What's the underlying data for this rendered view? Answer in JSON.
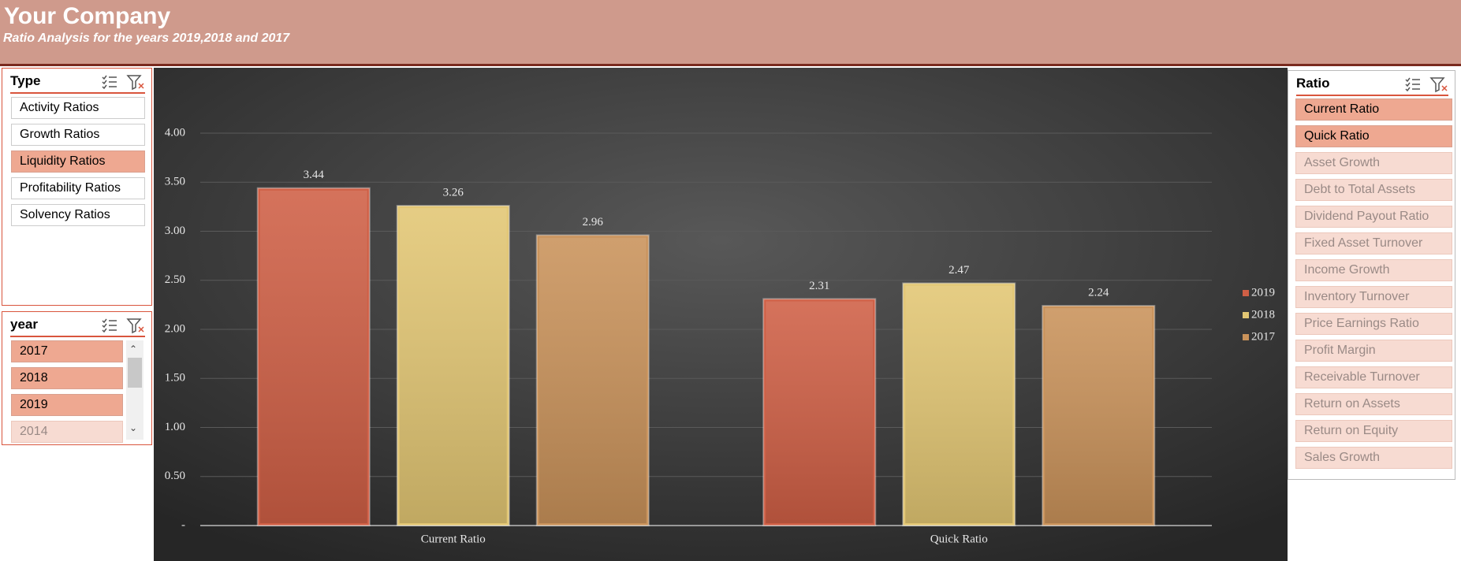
{
  "header": {
    "title": "Your Company",
    "subtitle": "Ratio Analysis for the years 2019,2018 and 2017"
  },
  "type_slicer": {
    "title": "Type",
    "items": [
      {
        "label": "Activity Ratios",
        "selected": false
      },
      {
        "label": "Growth Ratios",
        "selected": false
      },
      {
        "label": "Liquidity Ratios",
        "selected": true
      },
      {
        "label": "Profitability Ratios",
        "selected": false
      },
      {
        "label": "Solvency Ratios",
        "selected": false
      }
    ]
  },
  "year_slicer": {
    "title": "year",
    "items": [
      {
        "label": "2017",
        "selected": true
      },
      {
        "label": "2018",
        "selected": true
      },
      {
        "label": "2019",
        "selected": true
      },
      {
        "label": "2014",
        "selected": false
      }
    ]
  },
  "ratio_slicer": {
    "title": "Ratio",
    "items": [
      {
        "label": "Current Ratio",
        "selected": true
      },
      {
        "label": "Quick Ratio",
        "selected": true
      },
      {
        "label": "Asset Growth",
        "selected": false
      },
      {
        "label": "Debt to Total Assets",
        "selected": false
      },
      {
        "label": "Dividend Payout Ratio",
        "selected": false
      },
      {
        "label": "Fixed Asset Turnover",
        "selected": false
      },
      {
        "label": "Income Growth",
        "selected": false
      },
      {
        "label": "Inventory Turnover",
        "selected": false
      },
      {
        "label": "Price Earnings Ratio",
        "selected": false
      },
      {
        "label": "Profit Margin",
        "selected": false
      },
      {
        "label": "Receivable Turnover",
        "selected": false
      },
      {
        "label": "Return on Assets",
        "selected": false
      },
      {
        "label": "Return on Equity",
        "selected": false
      },
      {
        "label": "Sales Growth",
        "selected": false
      }
    ]
  },
  "chart_data": {
    "type": "bar",
    "categories": [
      "Current Ratio",
      "Quick Ratio"
    ],
    "series": [
      {
        "name": "2019",
        "color": "#cf5f45",
        "values": [
          3.44,
          2.31
        ]
      },
      {
        "name": "2018",
        "color": "#e2c673",
        "values": [
          3.26,
          2.47
        ]
      },
      {
        "name": "2017",
        "color": "#c9925a",
        "values": [
          2.96,
          2.24
        ]
      }
    ],
    "ylim": [
      0,
      4
    ],
    "yticks": [
      {
        "value": 0,
        "label": "-"
      },
      {
        "value": 0.5,
        "label": "0.50"
      },
      {
        "value": 1,
        "label": "1.00"
      },
      {
        "value": 1.5,
        "label": "1.50"
      },
      {
        "value": 2,
        "label": "2.00"
      },
      {
        "value": 2.5,
        "label": "2.50"
      },
      {
        "value": 3,
        "label": "3.00"
      },
      {
        "value": 3.5,
        "label": "3.50"
      },
      {
        "value": 4,
        "label": "4.00"
      }
    ],
    "grid": true,
    "legend": "right"
  }
}
